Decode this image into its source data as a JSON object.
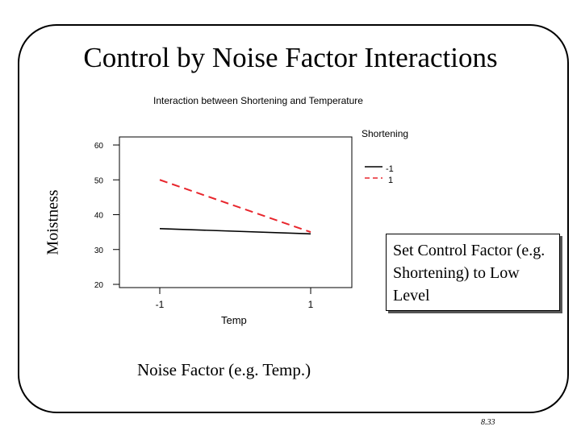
{
  "slide": {
    "title": "Control by Noise Factor Interactions",
    "ylabel": "Moistness",
    "callout": "Set Control Factor (e.g. Shortening) to Low Level",
    "noise_label": "Noise Factor (e.g. Temp.)",
    "page_number": "8.33"
  },
  "chart_data": {
    "type": "line",
    "title": "Interaction between Shortening and Temperature",
    "xlabel": "Temp",
    "ylabel": "Moistness",
    "legend_title": "Shortening",
    "legend_position": "top-right",
    "x": [
      -1,
      1
    ],
    "xticks": [
      "-1",
      "1"
    ],
    "yticks": [
      20,
      30,
      40,
      50,
      60
    ],
    "ylim": [
      20,
      60
    ],
    "series": [
      {
        "name": "-1",
        "values": [
          36,
          34.5
        ],
        "color": "#000000",
        "dash": "solid"
      },
      {
        "name": "1",
        "values": [
          50,
          35
        ],
        "color": "#e8262d",
        "dash": "dashed"
      }
    ]
  }
}
